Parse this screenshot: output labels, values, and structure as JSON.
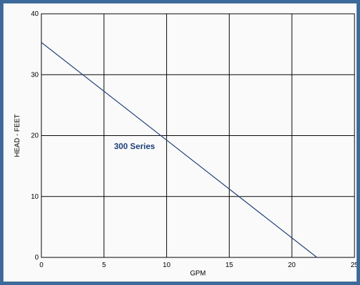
{
  "chart_data": {
    "type": "line",
    "title": "",
    "xlabel": "GPM",
    "ylabel": "HEAD - FEET",
    "xlim": [
      0,
      25
    ],
    "ylim": [
      0,
      40
    ],
    "xticks": [
      0,
      5,
      10,
      15,
      20,
      25
    ],
    "yticks": [
      0,
      10,
      20,
      30,
      40
    ],
    "grid": true,
    "series": [
      {
        "name": "300 Series",
        "x": [
          0,
          22
        ],
        "y": [
          35.3,
          0
        ],
        "color": "#1d3f78"
      }
    ]
  },
  "colors": {
    "frame": "#3d6a9a",
    "line": "#1d3f78",
    "grid": "#000000"
  }
}
